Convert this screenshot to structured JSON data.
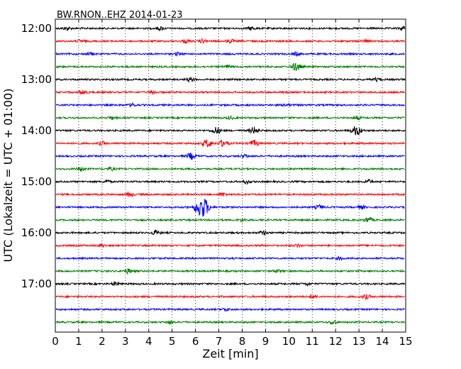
{
  "chart_data": {
    "type": "line",
    "title": "BW.RNON..EHZ 2014-01-23",
    "xlabel": "Zeit  [min]",
    "ylabel": "UTC (Lokalzeit = UTC + 01:00)",
    "xlim": [
      0,
      15
    ],
    "x_ticks": [
      "0",
      "1",
      "2",
      "3",
      "4",
      "5",
      "6",
      "7",
      "8",
      "9",
      "10",
      "11",
      "12",
      "13",
      "14",
      "15"
    ],
    "y_ticks": [
      "12:00",
      "13:00",
      "14:00",
      "15:00",
      "16:00",
      "17:00"
    ],
    "grid": "vertical dotted lines at each minute",
    "color_cycle": [
      "#000000",
      "#ff0000",
      "#0000ff",
      "#008000"
    ],
    "trace_interval_min": 15,
    "series": [
      {
        "start": "12:00",
        "events": [
          [
            0.5,
            0.5
          ],
          [
            4.5,
            0.5
          ],
          [
            8.4,
            0.5
          ],
          [
            14.9,
            0.6
          ]
        ]
      },
      {
        "start": "12:15",
        "events": [
          [
            1.1,
            0.4
          ],
          [
            5.6,
            0.5
          ],
          [
            6.3,
            0.5
          ],
          [
            7.5,
            0.5
          ],
          [
            13.3,
            0.4
          ]
        ]
      },
      {
        "start": "12:30",
        "events": [
          [
            1.5,
            0.4
          ],
          [
            5.2,
            0.4
          ],
          [
            10.3,
            0.5
          ]
        ]
      },
      {
        "start": "12:45",
        "events": [
          [
            7.4,
            0.5
          ],
          [
            10.3,
            1.2
          ]
        ]
      },
      {
        "start": "13:00",
        "events": [
          [
            5.8,
            0.6
          ],
          [
            13.8,
            0.5
          ]
        ]
      },
      {
        "start": "13:15",
        "events": [
          [
            1.2,
            0.6
          ],
          [
            4.2,
            0.4
          ]
        ]
      },
      {
        "start": "13:30",
        "events": [
          [
            3.3,
            0.4
          ],
          [
            9.9,
            0.4
          ]
        ]
      },
      {
        "start": "13:45",
        "events": [
          [
            2.4,
            0.4
          ],
          [
            7.5,
            0.4
          ],
          [
            12.9,
            0.5
          ]
        ]
      },
      {
        "start": "14:00",
        "events": [
          [
            6.9,
            1.0
          ],
          [
            8.5,
            1.0
          ],
          [
            12.9,
            1.4
          ]
        ]
      },
      {
        "start": "14:15",
        "events": [
          [
            2.0,
            0.5
          ],
          [
            6.5,
            1.1
          ],
          [
            7.2,
            1.0
          ],
          [
            8.5,
            0.9
          ]
        ]
      },
      {
        "start": "14:30",
        "events": [
          [
            5.8,
            0.9
          ],
          [
            8.1,
            0.5
          ]
        ]
      },
      {
        "start": "14:45",
        "events": [
          [
            1.1,
            0.6
          ],
          [
            2.4,
            0.4
          ]
        ]
      },
      {
        "start": "15:00",
        "events": [
          [
            2.2,
            0.4
          ],
          [
            8.2,
            0.5
          ],
          [
            13.4,
            0.5
          ]
        ]
      },
      {
        "start": "15:15",
        "events": [
          [
            3.2,
            0.6
          ],
          [
            7.2,
            0.5
          ]
        ]
      },
      {
        "start": "15:30",
        "events": [
          [
            6.2,
            2.2
          ],
          [
            6.4,
            1.6
          ],
          [
            11.3,
            0.6
          ],
          [
            13.1,
            0.5
          ]
        ]
      },
      {
        "start": "15:45",
        "events": [
          [
            8.0,
            0.4
          ],
          [
            13.4,
            0.8
          ]
        ]
      },
      {
        "start": "16:00",
        "events": [
          [
            4.3,
            0.7
          ],
          [
            8.9,
            0.6
          ]
        ]
      },
      {
        "start": "16:15",
        "events": [
          [
            2.0,
            0.4
          ],
          [
            10.4,
            0.4
          ]
        ]
      },
      {
        "start": "16:30",
        "events": [
          [
            12.2,
            0.4
          ]
        ]
      },
      {
        "start": "16:45",
        "events": [
          [
            3.1,
            0.7
          ],
          [
            9.5,
            0.4
          ]
        ]
      },
      {
        "start": "17:00",
        "events": [
          [
            2.6,
            0.5
          ],
          [
            10.8,
            0.4
          ]
        ]
      },
      {
        "start": "17:15",
        "events": [
          [
            11.0,
            0.4
          ],
          [
            13.3,
            0.6
          ]
        ]
      },
      {
        "start": "17:30",
        "events": [
          [
            7.3,
            0.4
          ]
        ]
      },
      {
        "start": "17:45",
        "events": [
          [
            4.9,
            0.4
          ],
          [
            11.9,
            0.6
          ]
        ]
      }
    ]
  }
}
